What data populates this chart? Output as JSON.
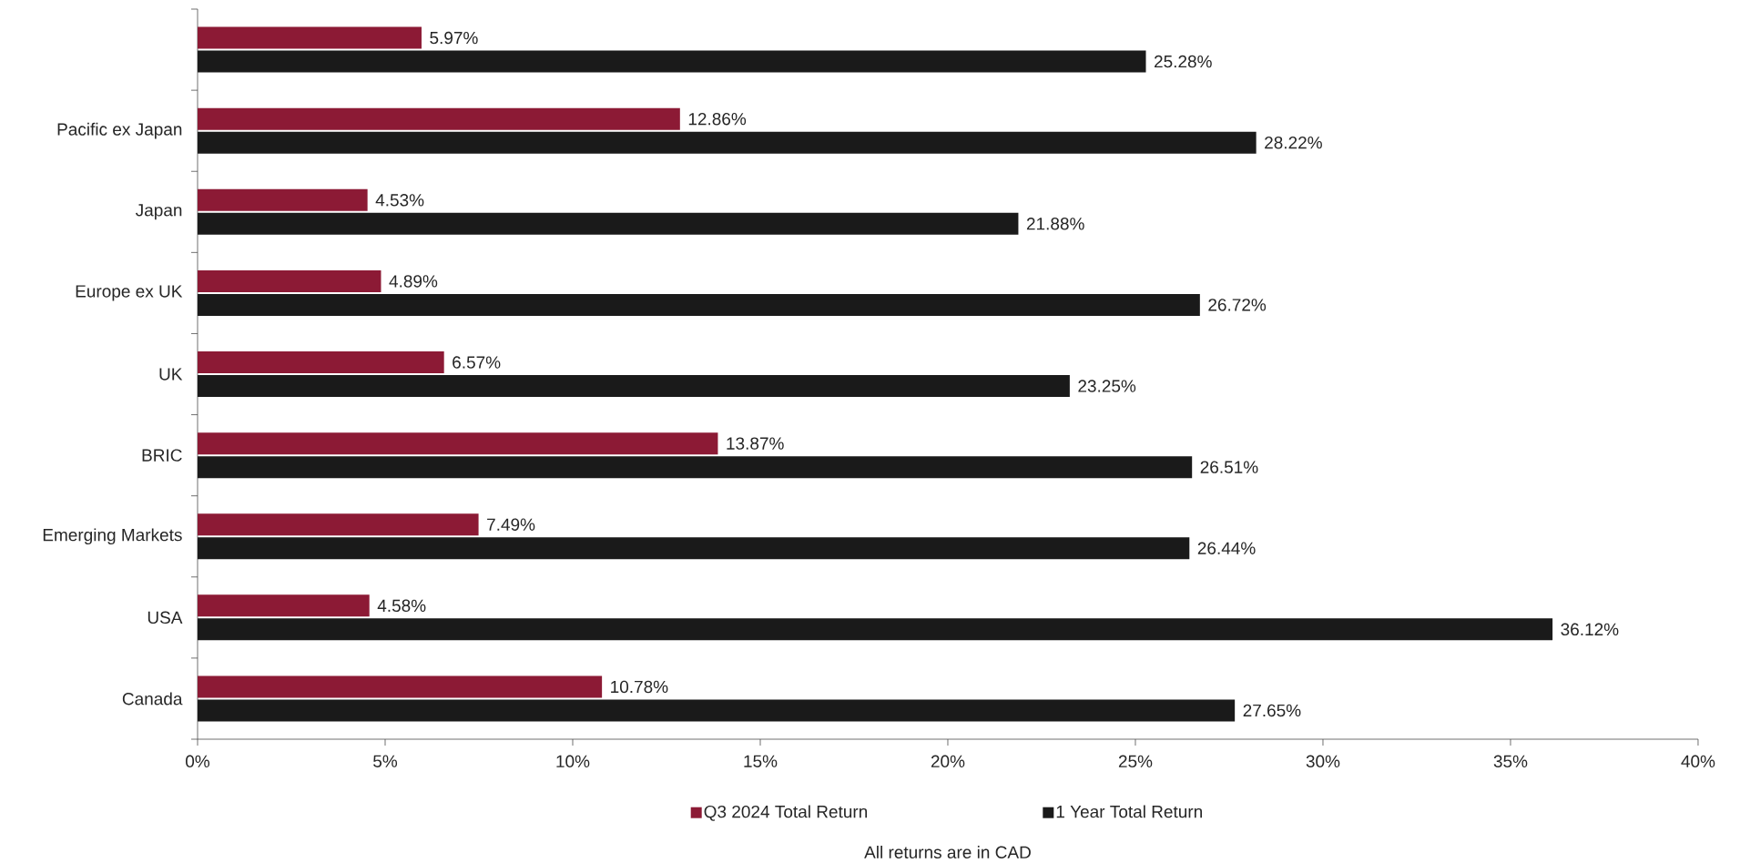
{
  "chart_data": {
    "type": "bar",
    "orientation": "horizontal",
    "categories": [
      null,
      "Pacific ex Japan",
      "Japan",
      "Europe ex UK",
      "UK",
      "BRIC",
      "Emerging Markets",
      "USA",
      "Canada"
    ],
    "series": [
      {
        "name": "Q3 2024 Total Return",
        "color": "#8c1a35",
        "values": [
          5.97,
          12.86,
          4.53,
          4.89,
          6.57,
          13.87,
          7.49,
          4.58,
          10.78
        ],
        "value_labels": [
          "5.97%",
          "12.86%",
          "4.53%",
          "4.89%",
          "6.57%",
          "13.87%",
          "7.49%",
          "4.58%",
          "10.78%"
        ]
      },
      {
        "name": "1 Year Total Return",
        "color": "#1a1a1a",
        "values": [
          25.28,
          28.22,
          21.88,
          26.72,
          23.25,
          26.51,
          26.44,
          36.12,
          27.65
        ],
        "value_labels": [
          "25.28%",
          "28.22%",
          "21.88%",
          "26.72%",
          "23.25%",
          "26.51%",
          "26.44%",
          "36.12%",
          "27.65%"
        ]
      }
    ],
    "xlim": [
      0,
      40
    ],
    "xticks": [
      {
        "value": 0,
        "label": "0%"
      },
      {
        "value": 5,
        "label": "5%"
      },
      {
        "value": 10,
        "label": "10%"
      },
      {
        "value": 15,
        "label": "15%"
      },
      {
        "value": 20,
        "label": "20%"
      },
      {
        "value": 25,
        "label": "25%"
      },
      {
        "value": 30,
        "label": "30%"
      },
      {
        "value": 35,
        "label": "35%"
      },
      {
        "value": 40,
        "label": "40%"
      }
    ],
    "grid": false,
    "legend": "bottom",
    "annotations": [
      "All returns are in CAD"
    ]
  }
}
